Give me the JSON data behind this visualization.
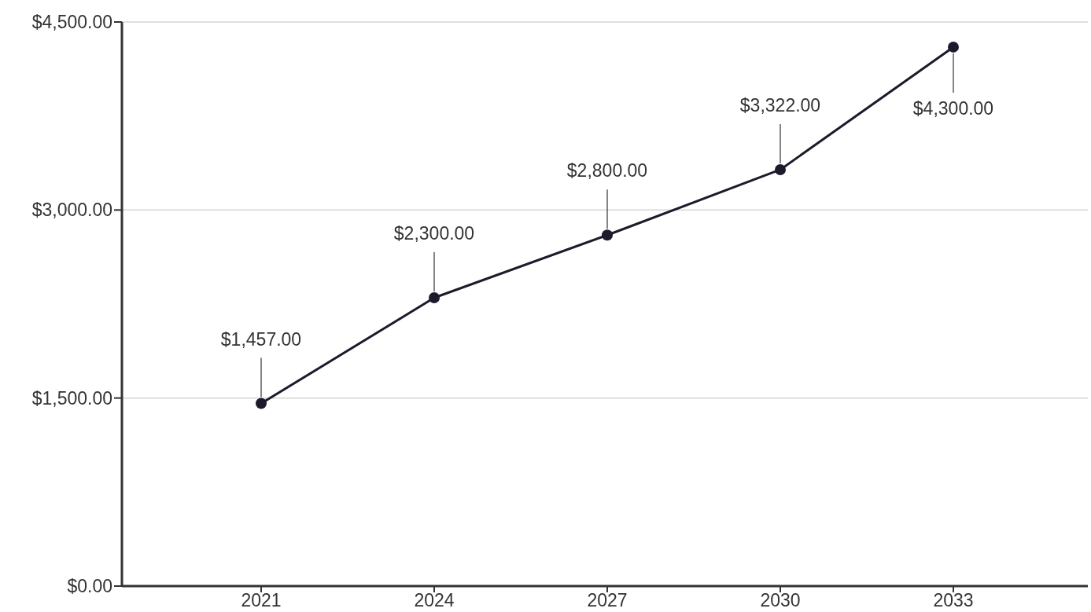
{
  "chart_data": {
    "type": "line",
    "categories": [
      "2021",
      "2024",
      "2027",
      "2030",
      "2033"
    ],
    "series": [
      {
        "color": "#1c1b2b",
        "values": [
          1457,
          2300,
          2800,
          3322,
          4300
        ],
        "value_labels": [
          "$1,457.00",
          "$2,300.00",
          "$2,800.00",
          "$3,322.00",
          "$4,300.00"
        ]
      }
    ],
    "ylim": [
      0,
      4500
    ],
    "yticks": [
      {
        "value": 0,
        "label": "$0.00"
      },
      {
        "value": 1500,
        "label": "$1,500.00"
      },
      {
        "value": 3000,
        "label": "$3,000.00"
      },
      {
        "value": 4500,
        "label": "$4,500.00"
      }
    ],
    "grid": "y",
    "marker": "circle",
    "line_style": "solid"
  }
}
